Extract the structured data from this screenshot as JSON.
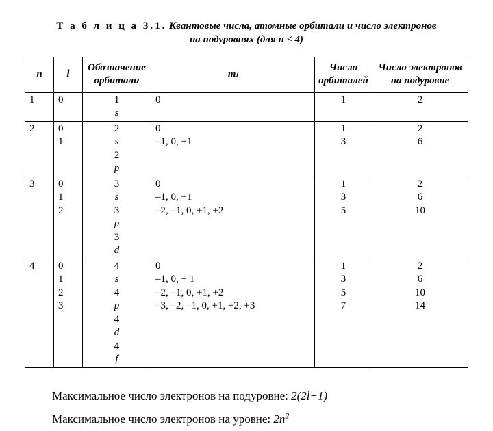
{
  "title": {
    "label": "Т а б л и ц а 3.1.",
    "text_line1": "Квантовые числа, атомные орбитали и число электронов",
    "text_line2": "на подуровнях (для n ≤ 4)"
  },
  "table": {
    "headers": {
      "n": "n",
      "l": "l",
      "orbital": "Обозначение орбитали",
      "ml": "mₗ",
      "orbital_count": "Число орбиталей",
      "electron_count": "Число электронов на подуровне"
    },
    "rows": [
      {
        "n": "1",
        "l": [
          "0"
        ],
        "orbital": [
          "1s"
        ],
        "ml": [
          "0"
        ],
        "orbitals": [
          "1"
        ],
        "electrons": [
          "2"
        ]
      },
      {
        "n": "2",
        "l": [
          "0",
          "1"
        ],
        "orbital": [
          "2s",
          "2p"
        ],
        "ml": [
          "0",
          "–1, 0, +1"
        ],
        "orbitals": [
          "1",
          "3"
        ],
        "electrons": [
          "2",
          "6"
        ]
      },
      {
        "n": "3",
        "l": [
          "0",
          "1",
          "2"
        ],
        "orbital": [
          "3s",
          "3p",
          "3d"
        ],
        "ml": [
          "0",
          "–1, 0, +1",
          "–2, –1, 0, +1, +2"
        ],
        "orbitals": [
          "1",
          "3",
          "5"
        ],
        "electrons": [
          "2",
          "6",
          "10"
        ]
      },
      {
        "n": "4",
        "l": [
          "0",
          "1",
          "2",
          "3"
        ],
        "orbital": [
          "4s",
          "4p",
          "4d",
          "4f"
        ],
        "ml": [
          "0",
          "–1, 0, + 1",
          "–2, –1, 0, +1, +2",
          "–3, –2, –1, 0, +1, +2, +3"
        ],
        "orbitals": [
          "1",
          "3",
          "5",
          "7"
        ],
        "electrons": [
          "2",
          "6",
          "10",
          "14"
        ]
      }
    ]
  },
  "footnotes": {
    "line1_text": "Максимальное число электронов на подуровне:",
    "line1_formula": "2(2l+1)",
    "line2_text": "Максимальное число электронов на уровне:",
    "line2_formula_prefix": "2n",
    "line2_formula_sup": "2"
  }
}
